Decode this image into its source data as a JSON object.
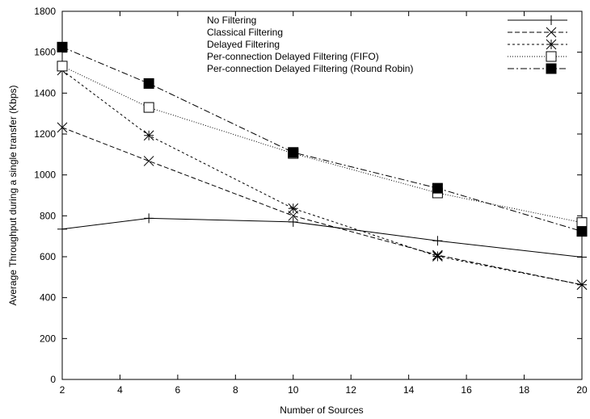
{
  "chart_data": {
    "type": "line",
    "title": "",
    "xlabel": "Number of Sources",
    "ylabel": "Average Throughput during a single transfer (Kbps)",
    "xlim": [
      2,
      20
    ],
    "ylim": [
      0,
      1800
    ],
    "xticks": [
      2,
      4,
      6,
      8,
      10,
      12,
      14,
      16,
      18,
      20
    ],
    "yticks": [
      0,
      200,
      400,
      600,
      800,
      1000,
      1200,
      1400,
      1600,
      1800
    ],
    "grid": false,
    "legend_position": "top-right",
    "x": [
      2,
      5,
      10,
      15,
      20
    ],
    "series": [
      {
        "name": "No Filtering",
        "marker": "plus",
        "dash": "solid",
        "values": [
          735,
          788,
          770,
          678,
          598
        ]
      },
      {
        "name": "Classical Filtering",
        "marker": "cross",
        "dash": "dashed",
        "values": [
          1232,
          1068,
          800,
          608,
          463
        ]
      },
      {
        "name": "Delayed Filtering",
        "marker": "star",
        "dash": "dotted",
        "values": [
          1512,
          1193,
          836,
          602,
          463
        ]
      },
      {
        "name": "Per-connection Delayed Filtering (FIFO)",
        "marker": "open-square",
        "dash": "fine-dotted",
        "values": [
          1532,
          1330,
          1105,
          912,
          767
        ]
      },
      {
        "name": "Per-connection Delayed Filtering (Round Robin)",
        "marker": "filled-square",
        "dash": "dash-dot",
        "values": [
          1625,
          1447,
          1110,
          935,
          724
        ]
      }
    ]
  }
}
